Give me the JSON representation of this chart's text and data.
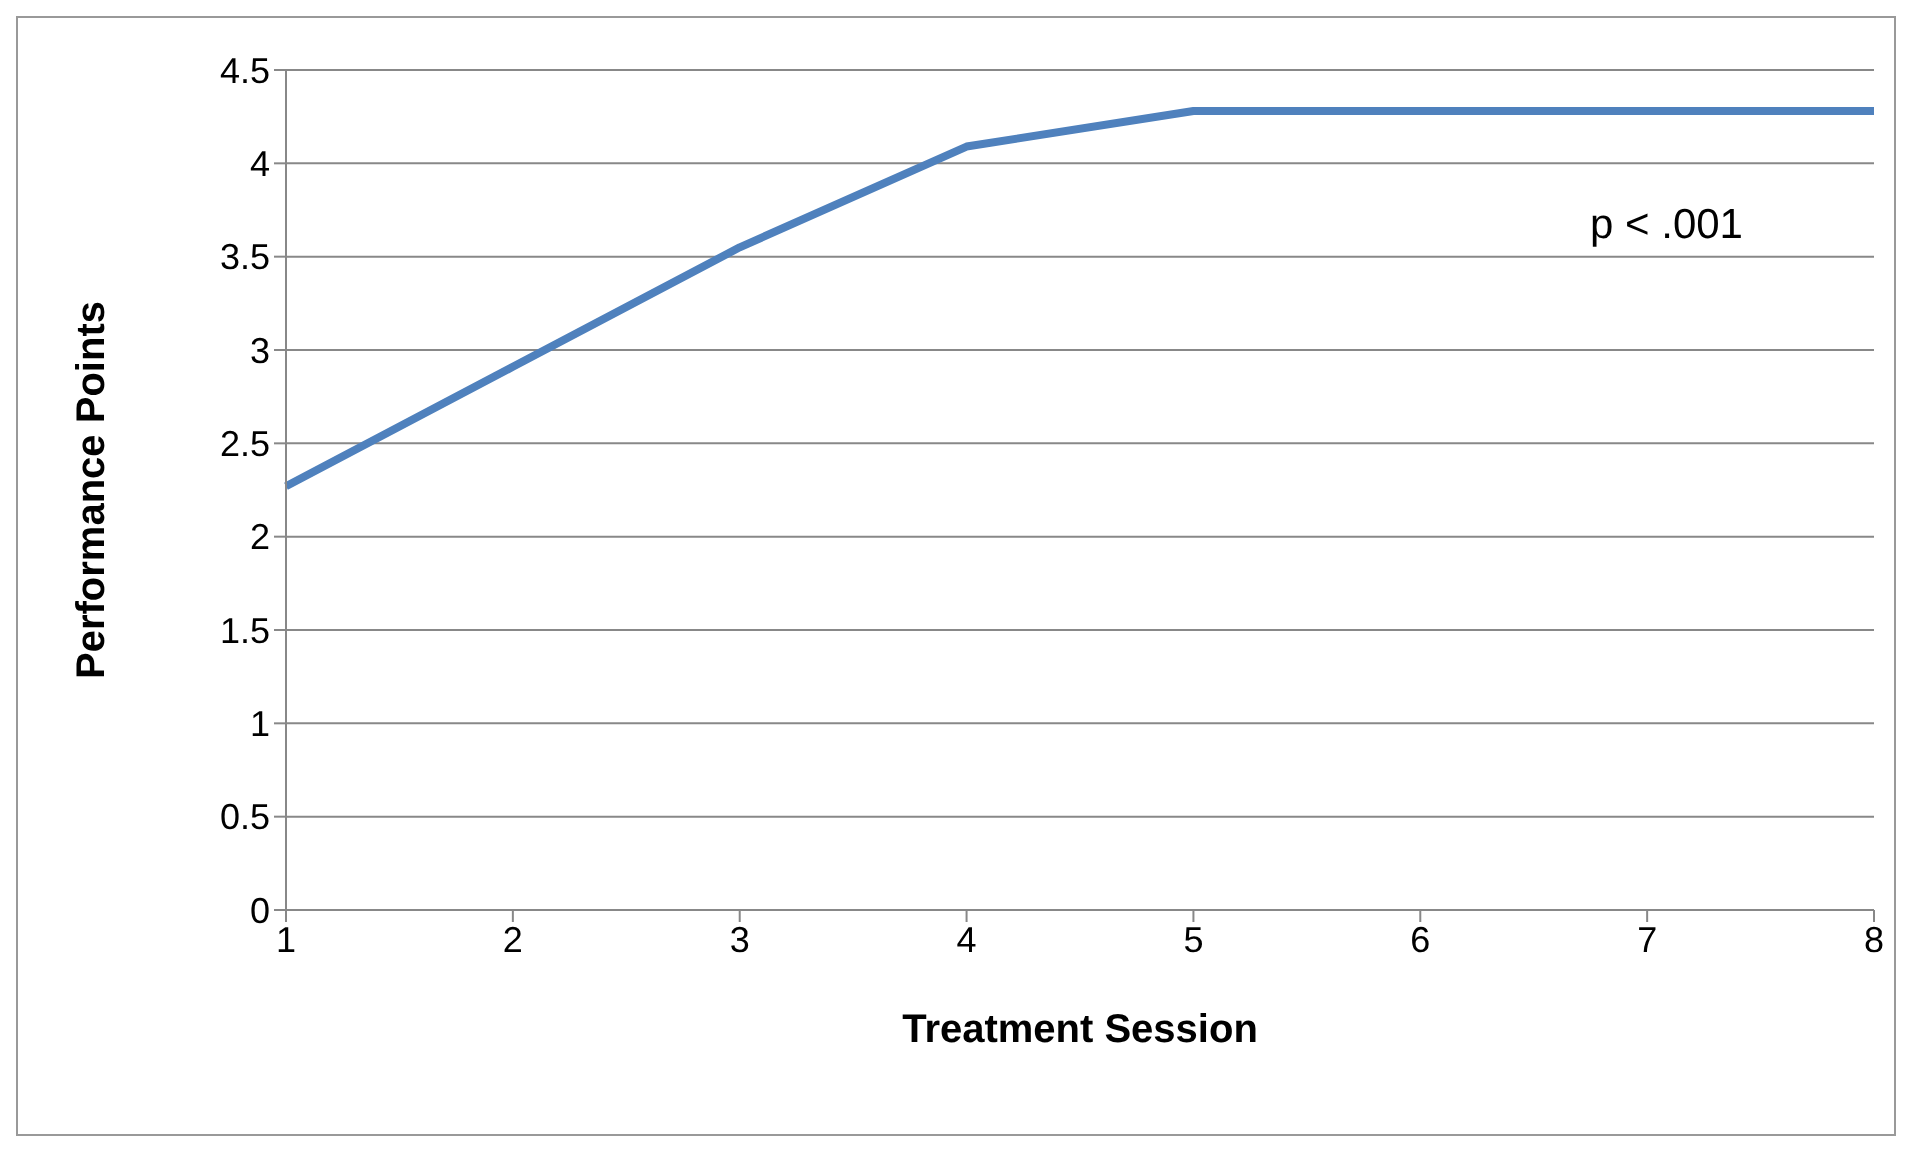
{
  "chart_data": {
    "type": "line",
    "categories": [
      "1",
      "2",
      "3",
      "4",
      "5",
      "6",
      "7",
      "8"
    ],
    "series": [
      {
        "color": "#4f81bd",
        "values": [
          2.27,
          2.91,
          3.55,
          4.09,
          4.28,
          4.28,
          4.28,
          4.28
        ]
      }
    ],
    "xlabel": "Treatment Session",
    "ylabel": "Performance Points",
    "ylim": [
      0,
      4.5
    ],
    "yticks": [
      0,
      0.5,
      1,
      1.5,
      2,
      2.5,
      3,
      3.5,
      4,
      4.5
    ],
    "grid": "y",
    "legend": false,
    "marker": "none",
    "line_style": "solid",
    "annotations": [
      "p < .001"
    ]
  }
}
